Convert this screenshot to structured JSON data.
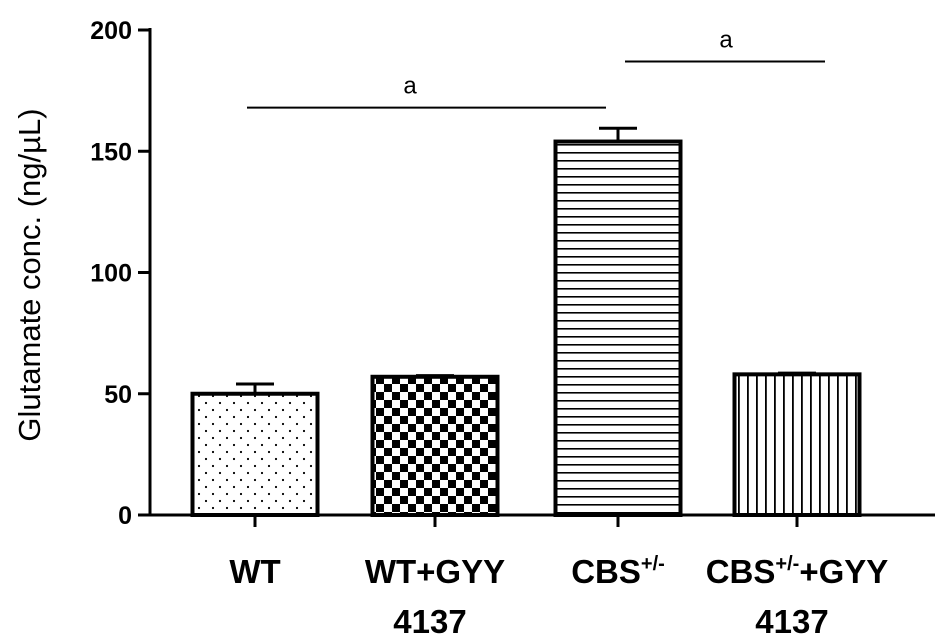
{
  "chart_data": {
    "type": "bar",
    "ylabel": "Glutamate conc. (ng/µL)",
    "ylim": [
      0,
      200
    ],
    "yticks": [
      "0",
      "50",
      "100",
      "150",
      "200"
    ],
    "grid": false,
    "legend": "none",
    "categories": [
      {
        "line1": "WT",
        "sup": "",
        "suffix": "",
        "line2": ""
      },
      {
        "line1": "WT+GYY",
        "sup": "",
        "suffix": "",
        "line2": "4137"
      },
      {
        "line1": "CBS",
        "sup": "+/-",
        "suffix": "",
        "line2": ""
      },
      {
        "line1": "CBS",
        "sup": "+/-",
        "suffix": "+GYY",
        "line2": "4137"
      }
    ],
    "values": [
      50,
      57,
      154,
      58
    ],
    "errors": [
      4,
      0.5,
      5.5,
      0.5
    ],
    "fill_patterns": [
      "dots",
      "checker",
      "horizontal-lines",
      "vertical-lines"
    ],
    "significance": [
      {
        "from": 0,
        "to": 2,
        "label": "a",
        "y": 168
      },
      {
        "from": 2,
        "to": 3,
        "label": "a",
        "y": 187
      }
    ],
    "colors": {
      "bar_stroke": "#000000",
      "background": "#ffffff"
    }
  }
}
